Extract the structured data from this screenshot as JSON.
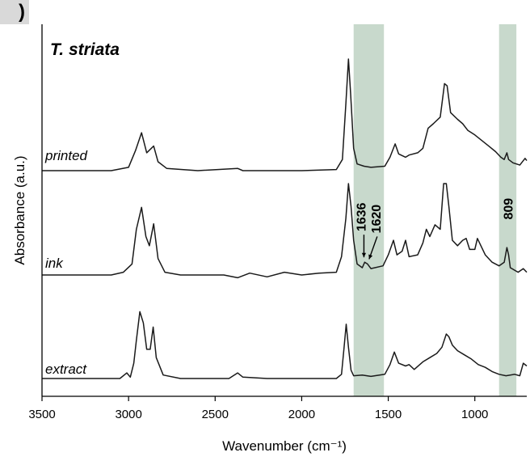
{
  "panel_label": ")",
  "chart_data": {
    "type": "line",
    "title": "T. striata",
    "xlabel": "Wavenumber (cm⁻¹)",
    "ylabel": "Absorbance (a.u.)",
    "xlim": [
      3500,
      700
    ],
    "x_reversed": true,
    "xticks": [
      {
        "value": 3500,
        "label": "3500"
      },
      {
        "value": 3000,
        "label": "3000"
      },
      {
        "value": 2500,
        "label": "2500"
      },
      {
        "value": 2000,
        "label": "2000"
      },
      {
        "value": 1500,
        "label": "1500"
      },
      {
        "value": 1000,
        "label": "1000"
      }
    ],
    "highlight_bands": [
      {
        "from": 1700,
        "to": 1525,
        "color": "#c8d9cc"
      },
      {
        "from": 860,
        "to": 760,
        "color": "#c8d9cc"
      }
    ],
    "series": [
      {
        "name": "printed",
        "color": "#1a1a1a",
        "points": [
          [
            3500,
            0.0
          ],
          [
            3100,
            0.0
          ],
          [
            3000,
            0.03
          ],
          [
            2960,
            0.18
          ],
          [
            2925,
            0.34
          ],
          [
            2895,
            0.16
          ],
          [
            2855,
            0.22
          ],
          [
            2830,
            0.08
          ],
          [
            2780,
            0.02
          ],
          [
            2600,
            0.0
          ],
          [
            2370,
            0.02
          ],
          [
            2340,
            0.0
          ],
          [
            2000,
            0.0
          ],
          [
            1800,
            0.01
          ],
          [
            1765,
            0.1
          ],
          [
            1745,
            0.6
          ],
          [
            1730,
            1.0
          ],
          [
            1718,
            0.7
          ],
          [
            1700,
            0.2
          ],
          [
            1680,
            0.06
          ],
          [
            1640,
            0.04
          ],
          [
            1600,
            0.03
          ],
          [
            1520,
            0.04
          ],
          [
            1490,
            0.12
          ],
          [
            1460,
            0.24
          ],
          [
            1440,
            0.15
          ],
          [
            1400,
            0.12
          ],
          [
            1380,
            0.14
          ],
          [
            1330,
            0.16
          ],
          [
            1300,
            0.2
          ],
          [
            1270,
            0.38
          ],
          [
            1240,
            0.42
          ],
          [
            1200,
            0.48
          ],
          [
            1175,
            0.78
          ],
          [
            1160,
            0.76
          ],
          [
            1140,
            0.52
          ],
          [
            1100,
            0.46
          ],
          [
            1070,
            0.42
          ],
          [
            1040,
            0.36
          ],
          [
            1000,
            0.32
          ],
          [
            960,
            0.27
          ],
          [
            920,
            0.22
          ],
          [
            880,
            0.17
          ],
          [
            850,
            0.12
          ],
          [
            830,
            0.1
          ],
          [
            815,
            0.16
          ],
          [
            805,
            0.1
          ],
          [
            780,
            0.07
          ],
          [
            740,
            0.05
          ],
          [
            710,
            0.11
          ],
          [
            700,
            0.09
          ]
        ]
      },
      {
        "name": "ink",
        "color": "#1a1a1a",
        "points": [
          [
            3500,
            0.0
          ],
          [
            3100,
            0.0
          ],
          [
            3030,
            0.03
          ],
          [
            2980,
            0.12
          ],
          [
            2955,
            0.5
          ],
          [
            2925,
            0.74
          ],
          [
            2900,
            0.42
          ],
          [
            2880,
            0.32
          ],
          [
            2855,
            0.56
          ],
          [
            2830,
            0.18
          ],
          [
            2790,
            0.03
          ],
          [
            2700,
            0.0
          ],
          [
            2450,
            0.0
          ],
          [
            2370,
            -0.03
          ],
          [
            2300,
            0.02
          ],
          [
            2200,
            -0.02
          ],
          [
            2100,
            0.03
          ],
          [
            2000,
            0.0
          ],
          [
            1900,
            0.02
          ],
          [
            1800,
            0.03
          ],
          [
            1770,
            0.2
          ],
          [
            1745,
            0.62
          ],
          [
            1730,
            1.0
          ],
          [
            1715,
            0.75
          ],
          [
            1700,
            0.38
          ],
          [
            1680,
            0.12
          ],
          [
            1650,
            0.08
          ],
          [
            1636,
            0.14
          ],
          [
            1620,
            0.12
          ],
          [
            1600,
            0.07
          ],
          [
            1530,
            0.1
          ],
          [
            1500,
            0.22
          ],
          [
            1470,
            0.38
          ],
          [
            1450,
            0.22
          ],
          [
            1420,
            0.26
          ],
          [
            1400,
            0.38
          ],
          [
            1380,
            0.2
          ],
          [
            1330,
            0.22
          ],
          [
            1300,
            0.35
          ],
          [
            1280,
            0.5
          ],
          [
            1260,
            0.42
          ],
          [
            1230,
            0.55
          ],
          [
            1200,
            0.5
          ],
          [
            1180,
            1.0
          ],
          [
            1165,
            1.0
          ],
          [
            1150,
            0.75
          ],
          [
            1130,
            0.38
          ],
          [
            1100,
            0.32
          ],
          [
            1070,
            0.38
          ],
          [
            1050,
            0.4
          ],
          [
            1030,
            0.28
          ],
          [
            1000,
            0.28
          ],
          [
            985,
            0.4
          ],
          [
            965,
            0.32
          ],
          [
            940,
            0.22
          ],
          [
            900,
            0.14
          ],
          [
            860,
            0.1
          ],
          [
            830,
            0.14
          ],
          [
            815,
            0.3
          ],
          [
            805,
            0.22
          ],
          [
            795,
            0.08
          ],
          [
            750,
            0.03
          ],
          [
            720,
            0.07
          ],
          [
            700,
            0.03
          ]
        ]
      },
      {
        "name": "extract",
        "color": "#1a1a1a",
        "points": [
          [
            3500,
            0.0
          ],
          [
            3050,
            0.0
          ],
          [
            3010,
            0.08
          ],
          [
            2990,
            0.02
          ],
          [
            2970,
            0.22
          ],
          [
            2955,
            0.55
          ],
          [
            2935,
            0.96
          ],
          [
            2915,
            0.8
          ],
          [
            2895,
            0.42
          ],
          [
            2875,
            0.42
          ],
          [
            2858,
            0.74
          ],
          [
            2840,
            0.3
          ],
          [
            2800,
            0.05
          ],
          [
            2700,
            0.0
          ],
          [
            2420,
            0.0
          ],
          [
            2370,
            0.08
          ],
          [
            2340,
            0.02
          ],
          [
            2200,
            0.0
          ],
          [
            1800,
            0.0
          ],
          [
            1770,
            0.06
          ],
          [
            1755,
            0.45
          ],
          [
            1743,
            0.78
          ],
          [
            1730,
            0.45
          ],
          [
            1715,
            0.12
          ],
          [
            1700,
            0.04
          ],
          [
            1650,
            0.05
          ],
          [
            1600,
            0.03
          ],
          [
            1520,
            0.06
          ],
          [
            1490,
            0.2
          ],
          [
            1465,
            0.38
          ],
          [
            1440,
            0.22
          ],
          [
            1400,
            0.18
          ],
          [
            1380,
            0.2
          ],
          [
            1350,
            0.13
          ],
          [
            1300,
            0.24
          ],
          [
            1260,
            0.3
          ],
          [
            1220,
            0.36
          ],
          [
            1190,
            0.45
          ],
          [
            1165,
            0.64
          ],
          [
            1150,
            0.6
          ],
          [
            1130,
            0.48
          ],
          [
            1100,
            0.4
          ],
          [
            1060,
            0.34
          ],
          [
            1020,
            0.28
          ],
          [
            980,
            0.2
          ],
          [
            940,
            0.16
          ],
          [
            900,
            0.1
          ],
          [
            860,
            0.06
          ],
          [
            820,
            0.04
          ],
          [
            770,
            0.06
          ],
          [
            740,
            0.04
          ],
          [
            720,
            0.22
          ],
          [
            700,
            0.18
          ]
        ]
      }
    ],
    "annotations": [
      {
        "text": "1636",
        "x": 1636,
        "series": "ink",
        "arrow": true
      },
      {
        "text": "1620",
        "x": 1620,
        "series": "ink",
        "arrow": true
      },
      {
        "text": "809",
        "x": 809,
        "series": "ink",
        "arrow": false
      }
    ]
  }
}
